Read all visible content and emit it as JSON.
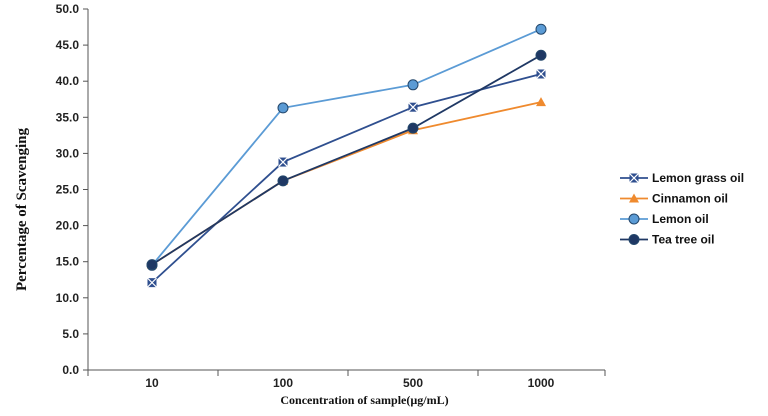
{
  "chart_data": {
    "type": "line",
    "categories": [
      "10",
      "100",
      "500",
      "1000"
    ],
    "xlabel": "Concentration of sample(µg/mL)",
    "ylabel": "Percentage of Scavenging",
    "ylim": [
      0,
      50
    ],
    "yticks": [
      "0.0",
      "5.0",
      "10.0",
      "15.0",
      "20.0",
      "25.0",
      "30.0",
      "35.0",
      "40.0",
      "45.0",
      "50.0"
    ],
    "grid": false,
    "legend_position": "right",
    "series": [
      {
        "name": "Lemon grass oil",
        "values": [
          12.1,
          28.8,
          36.4,
          41.0
        ],
        "color": "#2f4f8f",
        "marker": "x-square"
      },
      {
        "name": "Cinnamon oil",
        "values": [
          14.6,
          26.2,
          33.2,
          37.1
        ],
        "color": "#ef8a2e",
        "marker": "triangle"
      },
      {
        "name": "Lemon oil",
        "values": [
          14.5,
          36.3,
          39.5,
          47.2
        ],
        "color": "#5b9bd5",
        "marker": "circle"
      },
      {
        "name": "Tea tree oil",
        "values": [
          14.6,
          26.2,
          33.5,
          43.6
        ],
        "color": "#1f3864",
        "marker": "circle"
      }
    ]
  }
}
